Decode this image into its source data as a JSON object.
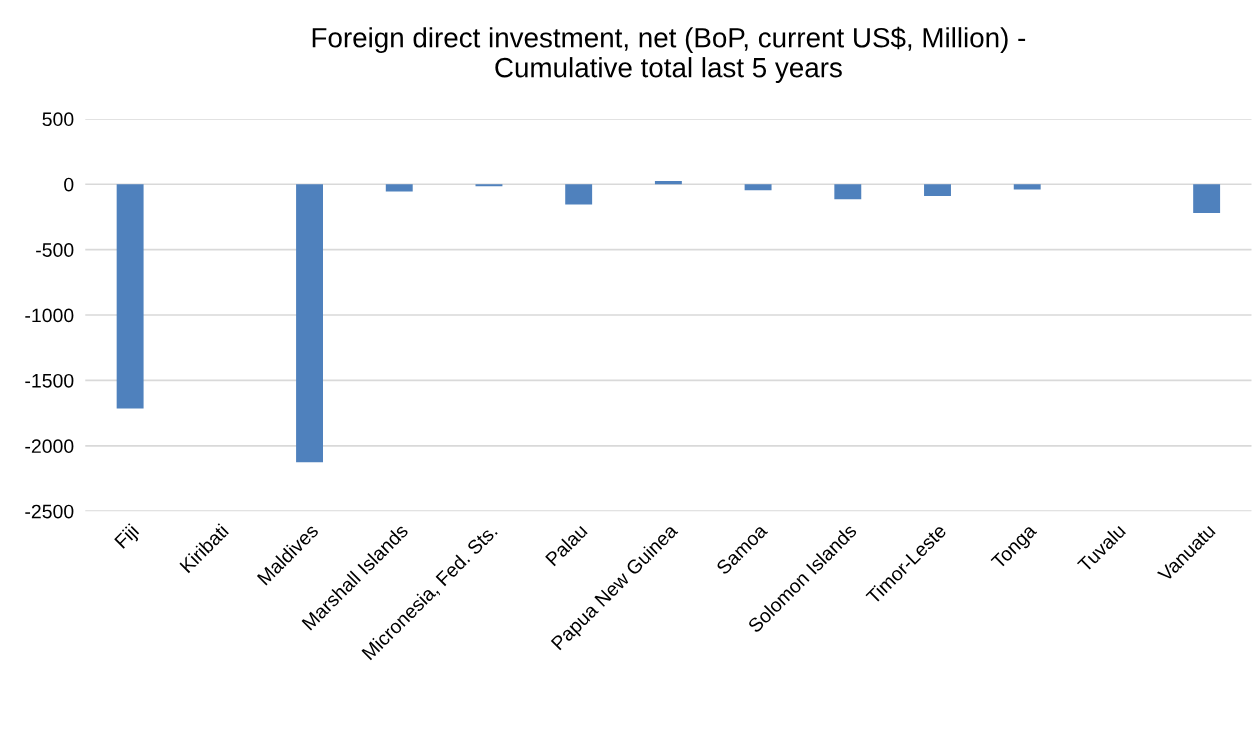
{
  "chart_data": {
    "type": "bar",
    "title": "Foreign direct investment, net (BoP, current US$, Million) -\nCumulative total last 5 years",
    "categories": [
      "Fiji",
      "Kiribati",
      "Maldives",
      "Marshall Islands",
      "Micronesia, Fed. Sts.",
      "Palau",
      "Papua New Guinea",
      "Samoa",
      "Solomon Islands",
      "Timor-Leste",
      "Tonga",
      "Tuvalu",
      "Vanuatu"
    ],
    "values": [
      -1715,
      null,
      -2125,
      -55,
      -15,
      -155,
      25,
      -45,
      -115,
      -90,
      -40,
      null,
      -220
    ],
    "color": "#4f81bd",
    "ylim": [
      -2500,
      500
    ],
    "yticks": [
      -2500,
      -2000,
      -1500,
      -1000,
      -500,
      0,
      500
    ],
    "grid": "y"
  }
}
